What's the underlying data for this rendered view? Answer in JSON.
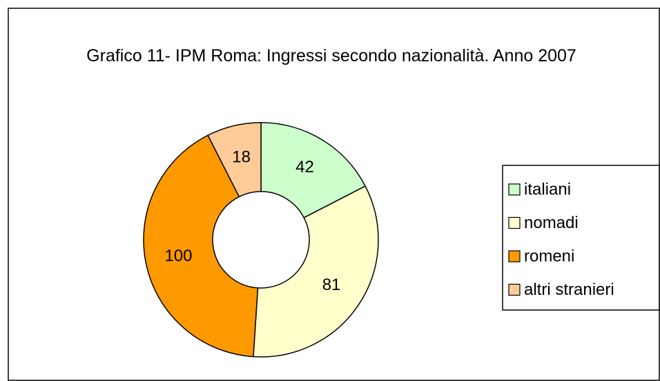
{
  "chart_data": {
    "type": "donut",
    "title": "Grafico 11- IPM Roma: Ingressi secondo nazionalità. Anno 2007",
    "categories": [
      "italiani",
      "nomadi",
      "romeni",
      "altri stranieri"
    ],
    "values": [
      42,
      81,
      100,
      18
    ],
    "colors": [
      "#ccffcc",
      "#ffffcc",
      "#ff9900",
      "#ffcc99"
    ],
    "legend": "right"
  }
}
